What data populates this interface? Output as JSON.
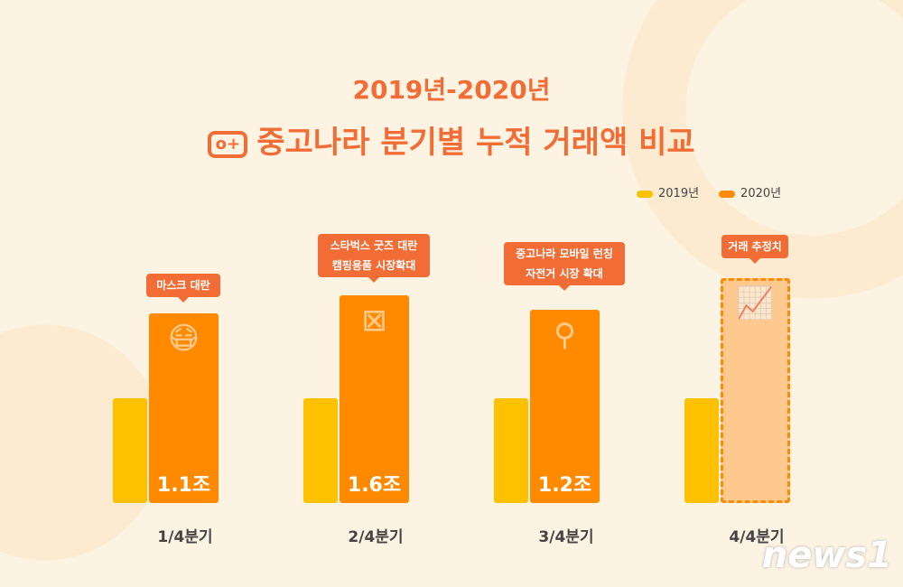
{
  "subtitle": "2019년-2020년",
  "chart_data": {
    "type": "bar",
    "title": "중고나라 분기별 누적 거래액 비교",
    "categories": [
      "1/4분기",
      "2/4분기",
      "3/4분기",
      "4/4분기"
    ],
    "series": [
      {
        "name": "2019년",
        "values": [
          null,
          null,
          null,
          null
        ],
        "color": "#fdc100"
      },
      {
        "name": "2020년",
        "values": [
          1.1,
          1.6,
          1.2,
          null
        ],
        "labels": [
          "1.1조",
          "1.6조",
          "1.2조",
          ""
        ],
        "color": "#ff8a00"
      }
    ],
    "annotations": [
      "마스크 대란",
      "스타벅스 굿즈 대란\n캠핑용품 시장확대",
      "중고나라 모바일 런칭\n자전거 시장 확대",
      "거래 추정치"
    ],
    "icons": [
      "mask-icon",
      "director-chair-icon",
      "bicycle-icon",
      "chart-growth-icon"
    ],
    "legend": "top-right"
  },
  "brand": "news1"
}
